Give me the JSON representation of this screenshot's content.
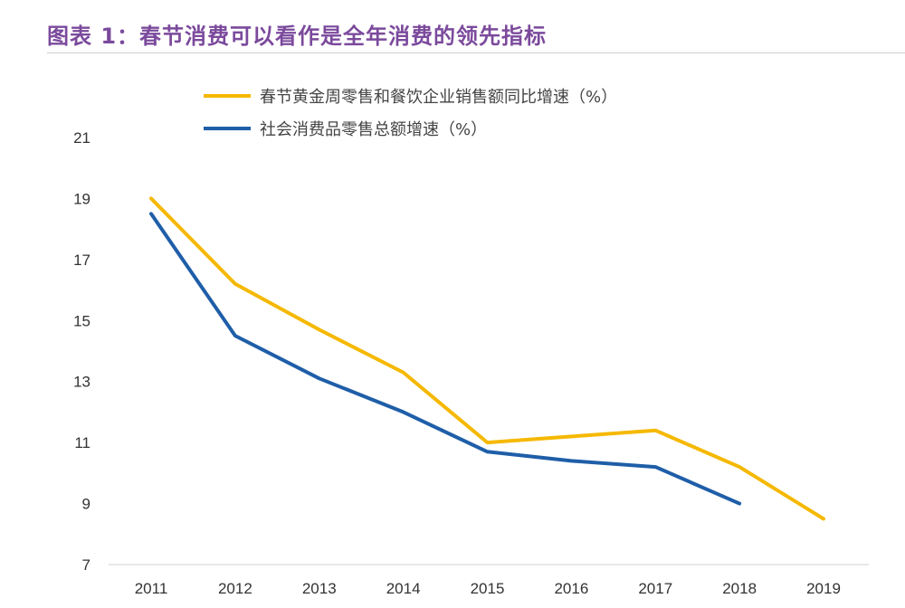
{
  "figure": {
    "title": "图表 1：春节消费可以看作是全年消费的领先指标"
  },
  "chart_data": {
    "type": "line",
    "x": [
      "2011",
      "2012",
      "2013",
      "2014",
      "2015",
      "2016",
      "2017",
      "2018",
      "2019"
    ],
    "ylim": [
      7,
      21
    ],
    "yticks": [
      7,
      9,
      11,
      13,
      15,
      17,
      19,
      21
    ],
    "grid": false,
    "legend_position": "top-left",
    "series": [
      {
        "name": "春节黄金周零售和餐饮企业销售额同比增速（%）",
        "color": "#f5b800",
        "values": [
          19.0,
          16.2,
          14.7,
          13.3,
          11.0,
          11.2,
          11.4,
          10.2,
          8.5
        ]
      },
      {
        "name": "社会消费品零售总额增速（%）",
        "color": "#1f5ea8",
        "values": [
          18.5,
          14.5,
          13.1,
          12.0,
          10.7,
          10.4,
          10.2,
          9.0,
          null
        ]
      }
    ]
  }
}
